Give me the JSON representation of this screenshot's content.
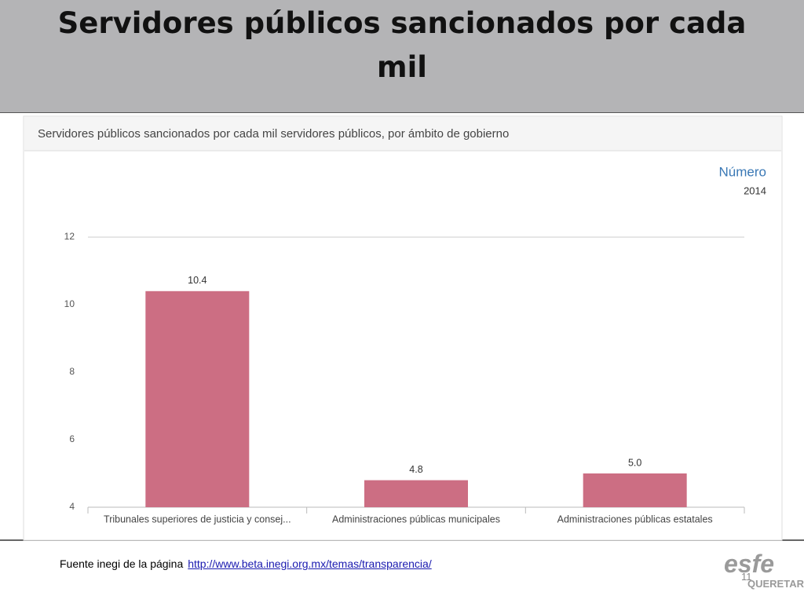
{
  "slide": {
    "title": "Servidores públicos sancionados por cada mil",
    "source_text": "Fuente inegi de la página",
    "source_link": "http://www.beta.inegi.org.mx/temas/transparencia/",
    "page_number": "11",
    "logo": "esfe",
    "logo_sub": "QUERETARO"
  },
  "chart_data": {
    "type": "bar",
    "title": "Servidores públicos sancionados por cada mil servidores públicos, por ámbito de gobierno",
    "unit_label": "Número",
    "period": "2014",
    "categories": [
      "Tribunales superiores de justicia y consej...",
      "Administraciones públicas municipales",
      "Administraciones públicas estatales"
    ],
    "values": [
      10.4,
      4.8,
      5.0
    ],
    "value_labels": [
      "10.4",
      "4.8",
      "5.0"
    ],
    "color": "#cc6e83",
    "ylim": [
      4,
      12
    ],
    "yticks": [
      4,
      6,
      8,
      10,
      12
    ],
    "grid": false
  }
}
